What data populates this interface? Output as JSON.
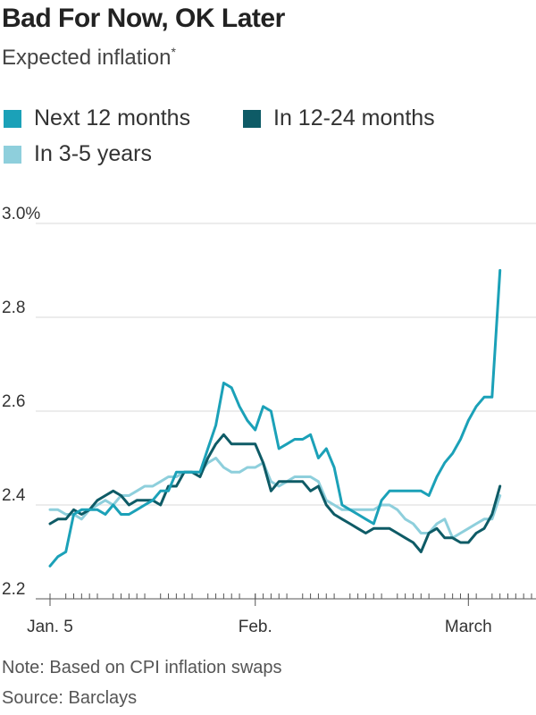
{
  "header": {
    "title": "Bad For Now, OK Later",
    "subtitle": "Expected inflation",
    "subtitle_mark": "*"
  },
  "footer": {
    "note": "Note: Based on CPI inflation swaps",
    "source": "Source: Barclays"
  },
  "chart_data": {
    "type": "line",
    "x_labels": [
      "Jan. 5",
      "Feb.",
      "March"
    ],
    "y_ticks": [
      "3.0%",
      "2.8",
      "2.6",
      "2.4",
      "2.2"
    ],
    "ylim": [
      2.2,
      3.0
    ],
    "grid": true,
    "legend_position": "top-left",
    "series": [
      {
        "name": "Next 12 months",
        "color": "#1ba1b8",
        "x": [
          0,
          1,
          2,
          3,
          4,
          5,
          6,
          7,
          8,
          9,
          10,
          11,
          12,
          13,
          14,
          15,
          16,
          17,
          18,
          19,
          20,
          21,
          22,
          23,
          24,
          25,
          26,
          27,
          28,
          29,
          30,
          31,
          32,
          33,
          34,
          35,
          36,
          37,
          38,
          39,
          40,
          41,
          42,
          43,
          44,
          45,
          46,
          47,
          48,
          49,
          50,
          51,
          52,
          53,
          54,
          55,
          56,
          57,
          58,
          59,
          60,
          61
        ],
        "values": [
          2.27,
          2.29,
          2.3,
          2.38,
          2.39,
          2.39,
          2.39,
          2.38,
          2.4,
          2.38,
          2.38,
          2.39,
          2.4,
          2.41,
          2.43,
          2.43,
          2.47,
          2.47,
          2.47,
          2.47,
          2.52,
          2.57,
          2.66,
          2.65,
          2.61,
          2.58,
          2.56,
          2.61,
          2.6,
          2.52,
          2.53,
          2.54,
          2.54,
          2.55,
          2.5,
          2.52,
          2.48,
          2.4,
          2.39,
          2.38,
          2.37,
          2.36,
          2.41,
          2.43,
          2.43,
          2.43,
          2.43,
          2.43,
          2.42,
          2.46,
          2.49,
          2.51,
          2.54,
          2.58,
          2.61,
          2.63,
          2.63,
          2.9,
          2.9,
          2.9,
          2.9,
          2.9
        ]
      },
      {
        "name": "In 12-24 months",
        "color": "#0e5b66",
        "x": [
          0,
          1,
          2,
          3,
          4,
          5,
          6,
          7,
          8,
          9,
          10,
          11,
          12,
          13,
          14,
          15,
          16,
          17,
          18,
          19,
          20,
          21,
          22,
          23,
          24,
          25,
          26,
          27,
          28,
          29,
          30,
          31,
          32,
          33,
          34,
          35,
          36,
          37,
          38,
          39,
          40,
          41,
          42,
          43,
          44,
          45,
          46,
          47,
          48,
          49,
          50,
          51,
          52,
          53,
          54,
          55,
          56,
          57
        ],
        "values": [
          2.36,
          2.37,
          2.37,
          2.39,
          2.38,
          2.39,
          2.41,
          2.42,
          2.43,
          2.42,
          2.4,
          2.41,
          2.41,
          2.41,
          2.4,
          2.44,
          2.44,
          2.47,
          2.47,
          2.46,
          2.5,
          2.53,
          2.55,
          2.53,
          2.53,
          2.53,
          2.53,
          2.49,
          2.43,
          2.45,
          2.45,
          2.45,
          2.45,
          2.43,
          2.44,
          2.4,
          2.38,
          2.37,
          2.36,
          2.35,
          2.34,
          2.35,
          2.35,
          2.35,
          2.34,
          2.33,
          2.32,
          2.3,
          2.34,
          2.35,
          2.33,
          2.33,
          2.32,
          2.32,
          2.34,
          2.35,
          2.38,
          2.44
        ]
      },
      {
        "name": "In 3-5 years",
        "color": "#8ecfdc",
        "x": [
          0,
          1,
          2,
          3,
          4,
          5,
          6,
          7,
          8,
          9,
          10,
          11,
          12,
          13,
          14,
          15,
          16,
          17,
          18,
          19,
          20,
          21,
          22,
          23,
          24,
          25,
          26,
          27,
          28,
          29,
          30,
          31,
          32,
          33,
          34,
          35,
          36,
          37,
          38,
          39,
          40,
          41,
          42,
          43,
          44,
          45,
          46,
          47,
          48,
          49,
          50,
          51,
          52,
          53,
          54,
          55,
          56,
          57
        ],
        "values": [
          2.39,
          2.39,
          2.38,
          2.38,
          2.37,
          2.39,
          2.4,
          2.41,
          2.4,
          2.42,
          2.42,
          2.43,
          2.44,
          2.44,
          2.45,
          2.46,
          2.46,
          2.47,
          2.47,
          2.47,
          2.49,
          2.5,
          2.48,
          2.47,
          2.47,
          2.48,
          2.48,
          2.49,
          2.45,
          2.44,
          2.45,
          2.46,
          2.46,
          2.46,
          2.45,
          2.41,
          2.4,
          2.39,
          2.39,
          2.39,
          2.39,
          2.39,
          2.4,
          2.4,
          2.39,
          2.37,
          2.36,
          2.34,
          2.34,
          2.36,
          2.37,
          2.33,
          2.34,
          2.35,
          2.36,
          2.37,
          2.37,
          2.42
        ]
      }
    ]
  }
}
